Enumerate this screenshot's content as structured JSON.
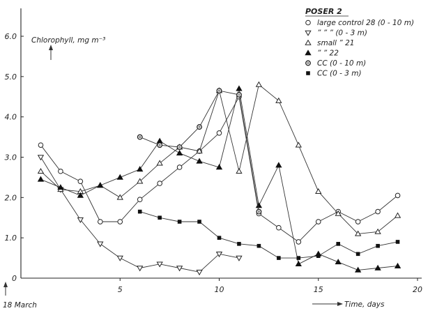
{
  "chart_data": {
    "type": "line",
    "title": "",
    "xlabel": "Time, days",
    "ylabel": "Chlorophyll, mg m⁻³",
    "x_origin_label": "18 March",
    "xlim": [
      0,
      20
    ],
    "ylim": [
      0,
      6.0
    ],
    "x_ticks": [
      5,
      10,
      15,
      20
    ],
    "x_tick_labels": [
      "5",
      "10",
      "15",
      "20"
    ],
    "y_ticks": [
      0,
      1.0,
      2.0,
      3.0,
      4.0,
      5.0,
      6.0
    ],
    "y_tick_labels": [
      "0",
      "1.0",
      "2.0",
      "3.0",
      "4.0",
      "5.0",
      "6.0"
    ],
    "grid": false,
    "legend_title": "POSER 2",
    "legend_position": "top-right",
    "series": [
      {
        "legend_text": "large control 28 (0 - 10 m)",
        "marker": "circle-open",
        "x": [
          1,
          2,
          3,
          4,
          5,
          6,
          7,
          8,
          9,
          10,
          11,
          12,
          13,
          14,
          15,
          16,
          17,
          18,
          19
        ],
        "y": [
          3.3,
          2.65,
          2.4,
          1.4,
          1.4,
          1.95,
          2.35,
          2.75,
          3.15,
          3.6,
          4.5,
          1.6,
          1.25,
          0.9,
          1.4,
          1.65,
          1.4,
          1.65,
          2.05
        ]
      },
      {
        "legend_text": "”      ”      ”  (0 - 3 m)",
        "marker": "triangle-down-open",
        "x": [
          1,
          2,
          3,
          4,
          5,
          6,
          7,
          8,
          9,
          10,
          11
        ],
        "y": [
          3.0,
          2.2,
          1.45,
          0.85,
          0.5,
          0.25,
          0.35,
          0.25,
          0.15,
          0.6,
          0.5
        ]
      },
      {
        "legend_text": "small         ”      21",
        "marker": "triangle-up-open",
        "x": [
          1,
          2,
          3,
          4,
          5,
          6,
          7,
          8,
          9,
          10,
          11,
          12,
          13,
          14,
          15,
          16,
          17,
          18,
          19
        ],
        "y": [
          2.65,
          2.2,
          2.15,
          2.3,
          2.0,
          2.4,
          2.85,
          3.25,
          3.15,
          4.65,
          2.65,
          4.8,
          4.4,
          3.3,
          2.15,
          1.6,
          1.1,
          1.15,
          1.55
        ]
      },
      {
        "legend_text": "”          ”      22",
        "marker": "triangle-up-filled",
        "x": [
          1,
          2,
          3,
          4,
          5,
          6,
          7,
          8,
          9,
          10,
          11,
          12,
          13,
          14,
          15,
          16,
          17,
          18,
          19
        ],
        "y": [
          2.45,
          2.25,
          2.05,
          2.3,
          2.5,
          2.7,
          3.4,
          3.1,
          2.9,
          2.75,
          4.7,
          1.8,
          2.8,
          0.35,
          0.6,
          0.4,
          0.2,
          0.25,
          0.3
        ]
      },
      {
        "legend_text": "CC  (0 - 10 m)",
        "marker": "circle-open-double",
        "x": [
          6,
          7,
          8,
          9,
          10,
          11,
          12
        ],
        "y": [
          3.5,
          3.3,
          3.25,
          3.75,
          4.65,
          4.55,
          1.65
        ]
      },
      {
        "legend_text": "CC  (0 - 3 m)",
        "marker": "square-filled",
        "x": [
          6,
          7,
          8,
          9,
          10,
          11,
          12,
          13,
          14,
          15,
          16,
          17,
          18,
          19
        ],
        "y": [
          1.65,
          1.5,
          1.4,
          1.4,
          1.0,
          0.85,
          0.8,
          0.5,
          0.5,
          0.55,
          0.85,
          0.6,
          0.8,
          0.9
        ]
      }
    ]
  }
}
